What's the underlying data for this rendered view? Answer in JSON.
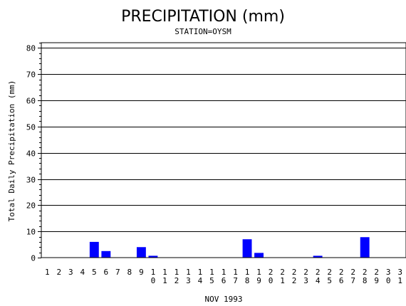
{
  "chart_data": {
    "type": "bar",
    "title": "PRECIPITATION (mm)",
    "subtitle": "STATION=OYSM",
    "xlabel": "NOV 1993",
    "ylabel": "Total Daily Precipitation (mm)",
    "ylim": [
      0,
      82
    ],
    "yticks": [
      0,
      10,
      20,
      30,
      40,
      50,
      60,
      70,
      80
    ],
    "grid": true,
    "categories": [
      "1",
      "2",
      "3",
      "4",
      "5",
      "6",
      "7",
      "8",
      "9",
      "10",
      "11",
      "12",
      "13",
      "14",
      "15",
      "16",
      "17",
      "18",
      "19",
      "20",
      "21",
      "22",
      "23",
      "24",
      "25",
      "26",
      "27",
      "28",
      "29",
      "30",
      "31"
    ],
    "values": [
      0,
      0,
      0,
      0,
      6,
      2.5,
      0,
      0,
      4,
      0.7,
      0,
      0,
      0,
      0,
      0,
      0,
      0,
      7,
      1.8,
      0,
      0,
      0,
      0,
      0.7,
      0,
      0,
      0,
      7.8,
      0,
      0,
      0
    ],
    "bar_color": "#0000ff"
  }
}
